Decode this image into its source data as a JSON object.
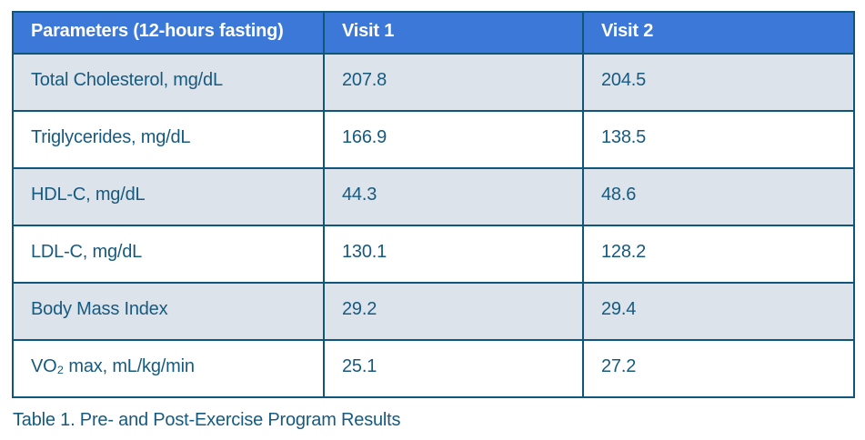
{
  "table": {
    "headers": [
      "Parameters (12-hours fasting)",
      "Visit 1",
      "Visit 2"
    ],
    "rows": [
      {
        "parameter": "Total Cholesterol, mg/dL",
        "visit1": "207.8",
        "visit2": "204.5"
      },
      {
        "parameter": "Triglycerides, mg/dL",
        "visit1": "166.9",
        "visit2": "138.5"
      },
      {
        "parameter": "HDL-C, mg/dL",
        "visit1": "44.3",
        "visit2": "48.6"
      },
      {
        "parameter": "LDL-C, mg/dL",
        "visit1": "130.1",
        "visit2": "128.2"
      },
      {
        "parameter": "Body Mass Index",
        "visit1": "29.2",
        "visit2": "29.4"
      },
      {
        "parameter": "VO₂ max, mL/kg/min",
        "visit1": "25.1",
        "visit2": "27.2"
      }
    ]
  },
  "caption": "Table 1. Pre- and Post-Exercise Program Results",
  "colors": {
    "header_bg": "#3c78d8",
    "header_text": "#ffffff",
    "row_shaded_bg": "#dce3ea",
    "row_plain_bg": "#ffffff",
    "border": "#0f567a",
    "text": "#175a80"
  },
  "chart_data": {
    "type": "table",
    "title": "Table 1. Pre- and Post-Exercise Program Results",
    "columns": [
      "Parameters (12-hours fasting)",
      "Visit 1",
      "Visit 2"
    ],
    "rows": [
      [
        "Total Cholesterol, mg/dL",
        207.8,
        204.5
      ],
      [
        "Triglycerides, mg/dL",
        166.9,
        138.5
      ],
      [
        "HDL-C, mg/dL",
        44.3,
        48.6
      ],
      [
        "LDL-C, mg/dL",
        130.1,
        128.2
      ],
      [
        "Body Mass Index",
        29.2,
        29.4
      ],
      [
        "VO2 max, mL/kg/min",
        25.1,
        27.2
      ]
    ]
  }
}
